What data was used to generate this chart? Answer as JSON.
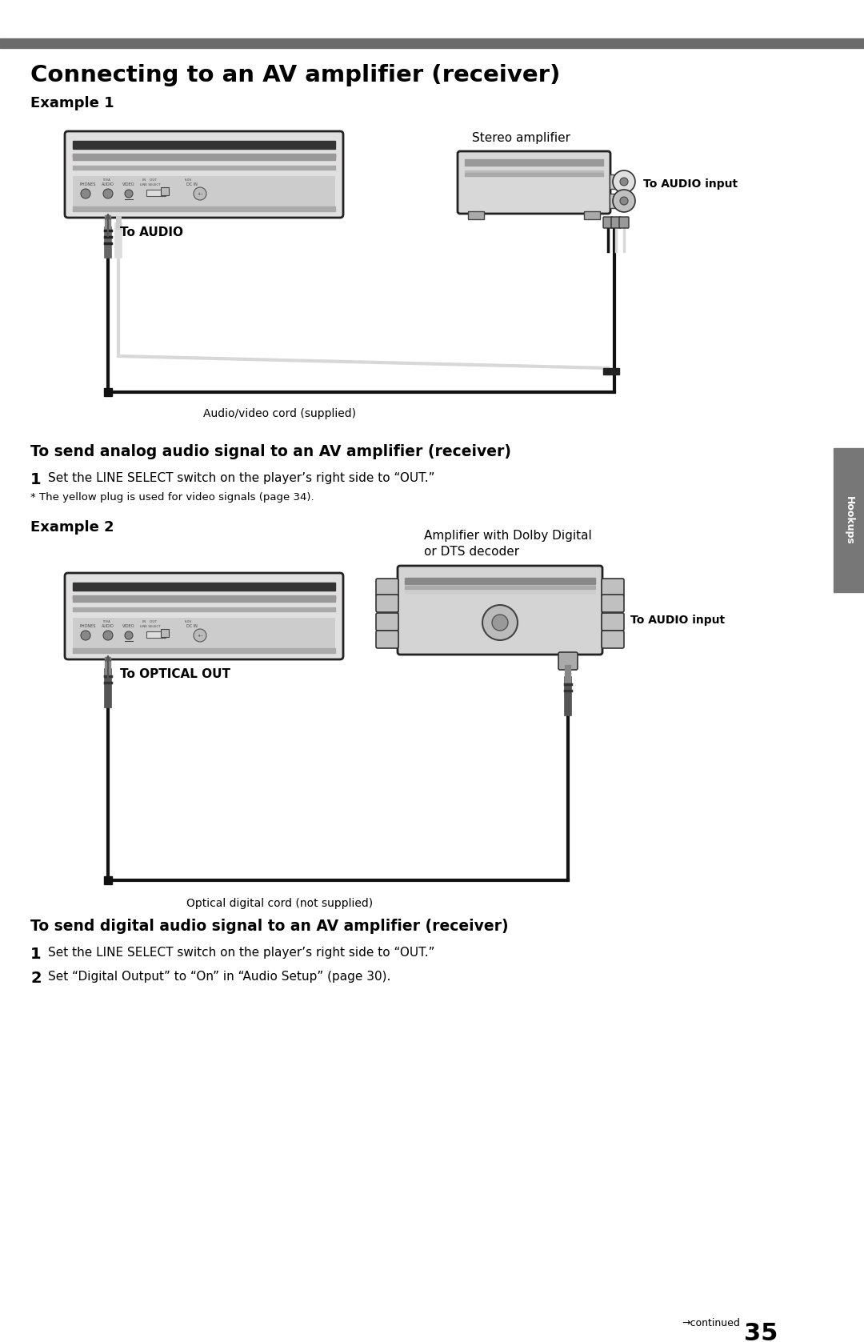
{
  "title": "Connecting to an AV amplifier (receiver)",
  "example1_label": "Example 1",
  "example2_label": "Example 2",
  "section1_bold": "To send analog audio signal to an AV amplifier (receiver)",
  "section2_bold": "To send digital audio signal to an AV amplifier (receiver)",
  "step1_text": "Set the LINE SELECT switch on the player’s right side to “OUT.”",
  "step1_note": "* The yellow plug is used for video signals (page 34).",
  "step2_text": "Set the LINE SELECT switch on the player’s right side to “OUT.”",
  "step3_text": "Set “Digital Output” to “On” in “Audio Setup” (page 30).",
  "label_to_audio": "To AUDIO",
  "label_to_audio_input": "To AUDIO input",
  "label_stereo_amp": "Stereo amplifier",
  "label_av_cord": "Audio/video cord (supplied)",
  "label_optical_out": "To OPTICAL OUT",
  "label_audio_input2": "To AUDIO input",
  "label_amp_dolby": "Amplifier with Dolby Digital",
  "label_or_dts": "or DTS decoder",
  "label_optical_cord": "Optical digital cord (not supplied)",
  "continued_text": "→continued",
  "page_number": "35",
  "hookups_text": "Hookups",
  "top_bar_color": "#6b6b6b",
  "bg_color": "#ffffff",
  "text_color": "#000000"
}
